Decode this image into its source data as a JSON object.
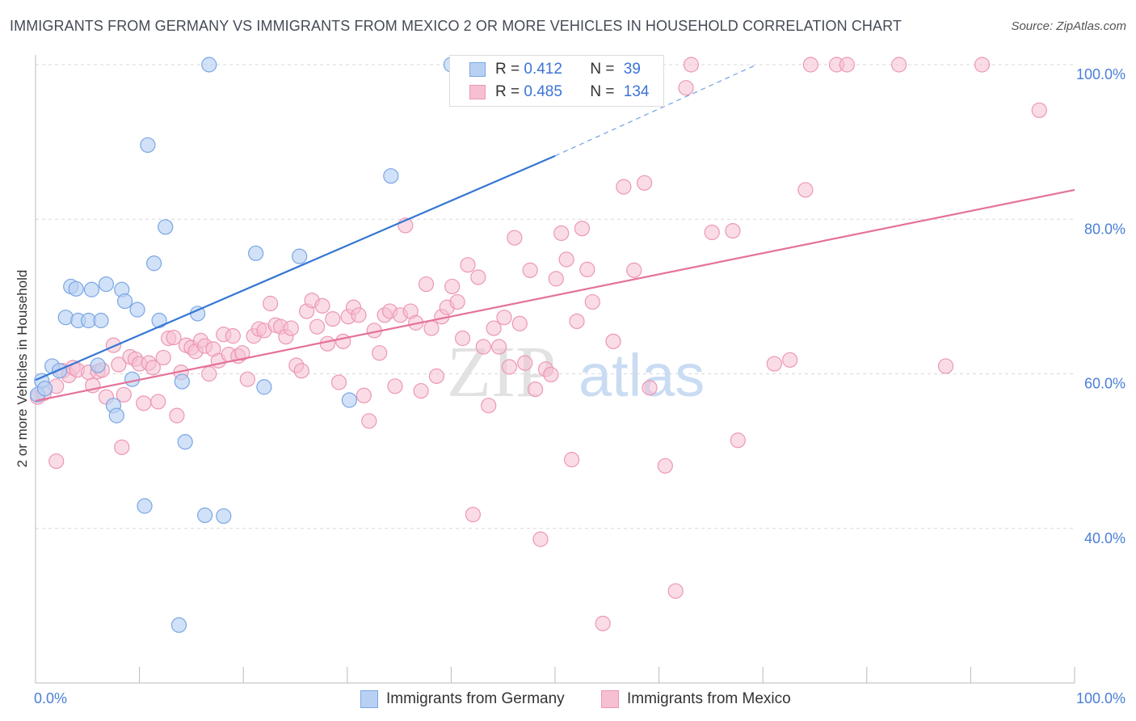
{
  "title": "IMMIGRANTS FROM GERMANY VS IMMIGRANTS FROM MEXICO 2 OR MORE VEHICLES IN HOUSEHOLD CORRELATION CHART",
  "source": "Source: ZipAtlas.com",
  "watermark": {
    "zip": "ZIP",
    "atlas": "atlas"
  },
  "colors": {
    "germany_fill": "#b8d1f3",
    "germany_stroke": "#7aa6e6",
    "germany_line": "#3476d4",
    "mexico_fill": "#f6c0d2",
    "mexico_stroke": "#ec97b5",
    "mexico_line": "#e4729a",
    "tick": "#4a7fd6",
    "grid": "#d9d9d9"
  },
  "legend": {
    "germany": {
      "r_label": "R =",
      "r_value": "0.412",
      "n_label": "N =",
      "n_value": "39"
    },
    "mexico": {
      "r_label": "R =",
      "r_value": "0.485",
      "n_label": "N =",
      "n_value": "134"
    }
  },
  "bottom_legend": {
    "germany": "Immigrants from Germany",
    "mexico": "Immigrants from Mexico"
  },
  "chart_data": {
    "type": "scatter",
    "title": "IMMIGRANTS FROM GERMANY VS IMMIGRANTS FROM MEXICO 2 OR MORE VEHICLES IN HOUSEHOLD CORRELATION CHART",
    "xlabel": "",
    "ylabel": "2 or more Vehicles in Household",
    "x_tick_labels": [
      "0.0%",
      "100.0%"
    ],
    "y_tick_labels": [
      "40.0%",
      "60.0%",
      "80.0%",
      "100.0%"
    ],
    "y_ticks": [
      40,
      60,
      80,
      100
    ],
    "xlim": [
      0,
      100
    ],
    "ylim": [
      20,
      100
    ],
    "grid": true,
    "legend_placement": "top-center",
    "series": [
      {
        "name": "Immigrants from Germany",
        "color": "#b8d1f3",
        "trend": {
          "x": [
            0,
            50
          ],
          "y": [
            59.2,
            88.2
          ],
          "dashed_to": [
            69.4,
            100
          ]
        },
        "points": [
          [
            0.2,
            57.3
          ],
          [
            0.6,
            59.1
          ],
          [
            0.9,
            58.1
          ],
          [
            1.6,
            61.0
          ],
          [
            2.3,
            60.4
          ],
          [
            2.9,
            67.3
          ],
          [
            3.4,
            71.3
          ],
          [
            3.9,
            71.0
          ],
          [
            4.1,
            66.9
          ],
          [
            5.1,
            66.9
          ],
          [
            5.4,
            70.9
          ],
          [
            6.0,
            61.1
          ],
          [
            6.3,
            66.9
          ],
          [
            6.8,
            71.6
          ],
          [
            7.5,
            55.9
          ],
          [
            7.8,
            54.6
          ],
          [
            8.3,
            70.9
          ],
          [
            8.6,
            69.4
          ],
          [
            9.3,
            59.3
          ],
          [
            9.8,
            68.3
          ],
          [
            10.5,
            42.9
          ],
          [
            10.8,
            89.6
          ],
          [
            11.4,
            74.3
          ],
          [
            11.9,
            66.9
          ],
          [
            12.5,
            79.0
          ],
          [
            14.1,
            59.0
          ],
          [
            14.4,
            51.2
          ],
          [
            13.8,
            27.5
          ],
          [
            15.6,
            67.8
          ],
          [
            16.3,
            41.7
          ],
          [
            16.7,
            100.0
          ],
          [
            18.1,
            41.6
          ],
          [
            21.2,
            75.6
          ],
          [
            22.0,
            58.3
          ],
          [
            25.4,
            75.2
          ],
          [
            30.2,
            56.6
          ],
          [
            34.2,
            85.6
          ],
          [
            40.0,
            100.0
          ],
          [
            47.2,
            100.0
          ]
        ]
      },
      {
        "name": "Immigrants from Mexico",
        "color": "#f6c0d2",
        "trend": {
          "x": [
            0,
            100
          ],
          "y": [
            56.5,
            83.8
          ]
        },
        "points": [
          [
            0.2,
            57.0
          ],
          [
            0.8,
            57.5
          ],
          [
            2.0,
            58.4
          ],
          [
            2.0,
            48.7
          ],
          [
            2.6,
            60.4
          ],
          [
            3.2,
            59.8
          ],
          [
            3.6,
            60.8
          ],
          [
            4.0,
            60.5
          ],
          [
            5.1,
            60.2
          ],
          [
            5.5,
            58.5
          ],
          [
            6.0,
            60.3
          ],
          [
            6.4,
            60.5
          ],
          [
            6.8,
            57.0
          ],
          [
            7.5,
            63.7
          ],
          [
            8.0,
            61.2
          ],
          [
            8.3,
            50.5
          ],
          [
            8.5,
            57.3
          ],
          [
            9.1,
            62.2
          ],
          [
            9.6,
            61.9
          ],
          [
            10.0,
            61.3
          ],
          [
            10.4,
            56.2
          ],
          [
            10.9,
            61.4
          ],
          [
            11.3,
            60.8
          ],
          [
            11.8,
            56.4
          ],
          [
            12.3,
            62.1
          ],
          [
            12.8,
            64.6
          ],
          [
            13.3,
            64.7
          ],
          [
            13.6,
            54.6
          ],
          [
            14.0,
            60.2
          ],
          [
            14.5,
            63.7
          ],
          [
            15.0,
            63.4
          ],
          [
            15.4,
            62.9
          ],
          [
            15.9,
            64.3
          ],
          [
            16.3,
            63.6
          ],
          [
            16.7,
            60.0
          ],
          [
            17.1,
            63.2
          ],
          [
            17.6,
            61.7
          ],
          [
            18.1,
            65.1
          ],
          [
            18.6,
            62.5
          ],
          [
            19.0,
            64.9
          ],
          [
            19.5,
            62.3
          ],
          [
            19.9,
            62.7
          ],
          [
            20.4,
            59.3
          ],
          [
            21.0,
            64.9
          ],
          [
            21.5,
            65.8
          ],
          [
            22.0,
            65.6
          ],
          [
            22.6,
            69.1
          ],
          [
            23.1,
            66.3
          ],
          [
            23.6,
            66.1
          ],
          [
            24.1,
            64.8
          ],
          [
            24.6,
            65.9
          ],
          [
            25.1,
            61.1
          ],
          [
            25.6,
            60.4
          ],
          [
            26.1,
            68.1
          ],
          [
            26.6,
            69.5
          ],
          [
            27.1,
            66.1
          ],
          [
            27.6,
            68.8
          ],
          [
            28.1,
            63.9
          ],
          [
            28.6,
            67.1
          ],
          [
            29.2,
            58.9
          ],
          [
            29.6,
            64.2
          ],
          [
            30.1,
            67.4
          ],
          [
            30.6,
            68.6
          ],
          [
            31.1,
            67.6
          ],
          [
            31.6,
            57.2
          ],
          [
            32.1,
            53.9
          ],
          [
            32.6,
            65.6
          ],
          [
            33.1,
            62.7
          ],
          [
            33.6,
            67.6
          ],
          [
            34.1,
            68.1
          ],
          [
            34.6,
            58.4
          ],
          [
            35.1,
            67.6
          ],
          [
            35.6,
            79.2
          ],
          [
            36.1,
            68.1
          ],
          [
            36.6,
            66.6
          ],
          [
            37.1,
            57.8
          ],
          [
            37.6,
            71.6
          ],
          [
            38.1,
            65.9
          ],
          [
            38.6,
            59.7
          ],
          [
            39.1,
            67.4
          ],
          [
            39.6,
            68.6
          ],
          [
            40.1,
            71.3
          ],
          [
            40.6,
            69.3
          ],
          [
            41.1,
            64.6
          ],
          [
            41.6,
            74.1
          ],
          [
            42.1,
            41.8
          ],
          [
            42.6,
            72.5
          ],
          [
            43.1,
            63.5
          ],
          [
            43.6,
            55.9
          ],
          [
            44.1,
            65.9
          ],
          [
            44.6,
            63.5
          ],
          [
            45.1,
            67.3
          ],
          [
            45.6,
            60.9
          ],
          [
            46.1,
            77.6
          ],
          [
            46.6,
            66.5
          ],
          [
            47.1,
            61.4
          ],
          [
            47.6,
            73.4
          ],
          [
            48.1,
            58.0
          ],
          [
            48.6,
            38.6
          ],
          [
            49.1,
            60.6
          ],
          [
            49.6,
            59.9
          ],
          [
            50.1,
            72.3
          ],
          [
            50.6,
            78.2
          ],
          [
            51.1,
            74.8
          ],
          [
            51.6,
            48.9
          ],
          [
            52.1,
            66.8
          ],
          [
            52.6,
            78.8
          ],
          [
            53.1,
            73.5
          ],
          [
            53.6,
            69.3
          ],
          [
            54.6,
            27.7
          ],
          [
            55.6,
            64.2
          ],
          [
            56.6,
            84.2
          ],
          [
            57.6,
            73.4
          ],
          [
            58.6,
            84.7
          ],
          [
            59.1,
            58.2
          ],
          [
            60.6,
            48.1
          ],
          [
            61.6,
            31.9
          ],
          [
            62.6,
            97.0
          ],
          [
            63.1,
            100.0
          ],
          [
            65.1,
            78.3
          ],
          [
            67.1,
            78.5
          ],
          [
            67.6,
            51.4
          ],
          [
            71.1,
            61.3
          ],
          [
            72.6,
            61.8
          ],
          [
            74.1,
            83.8
          ],
          [
            74.6,
            100.0
          ],
          [
            77.1,
            100.0
          ],
          [
            78.1,
            100.0
          ],
          [
            83.1,
            100.0
          ],
          [
            87.6,
            61.0
          ],
          [
            91.1,
            100.0
          ],
          [
            96.6,
            94.1
          ],
          [
            58.6,
            100.0
          ],
          [
            55.6,
            100.0
          ]
        ]
      }
    ]
  }
}
